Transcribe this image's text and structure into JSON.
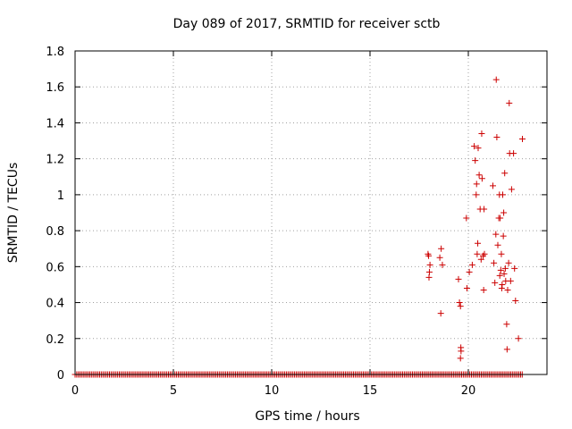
{
  "chart_data": {
    "type": "scatter",
    "title": "Day 089 of 2017, SRMTID for receiver sctb",
    "xlabel": "GPS time / hours",
    "ylabel": "SRMTID / TECUs",
    "xlim": [
      0,
      24
    ],
    "ylim": [
      0,
      1.8
    ],
    "x_ticks": [
      0,
      5,
      10,
      15,
      20
    ],
    "x_tick_labels": [
      "0",
      "5",
      "10",
      "15",
      "20"
    ],
    "y_ticks": [
      0,
      0.2,
      0.4,
      0.6,
      0.8,
      1.0,
      1.2,
      1.4,
      1.6,
      1.8
    ],
    "y_tick_labels": [
      "0",
      "0.2",
      "0.4",
      "0.6",
      "0.8",
      "1",
      "1.2",
      "1.4",
      "1.6",
      "1.8"
    ],
    "grid": true,
    "marker": "+",
    "colors": {
      "marker": "#cc0000",
      "grid": "#a0a0a0",
      "axis": "#000000"
    },
    "zero_baseline": {
      "x_start": 0.0,
      "x_end": 22.8,
      "step": 0.0833,
      "y": 0
    },
    "series": [
      {
        "name": "SRMTID",
        "points": [
          [
            17.95,
            0.67
          ],
          [
            17.98,
            0.66
          ],
          [
            18.0,
            0.54
          ],
          [
            18.02,
            0.57
          ],
          [
            18.05,
            0.61
          ],
          [
            18.55,
            0.65
          ],
          [
            18.6,
            0.34
          ],
          [
            18.62,
            0.7
          ],
          [
            18.68,
            0.61
          ],
          [
            19.5,
            0.53
          ],
          [
            19.55,
            0.4
          ],
          [
            19.6,
            0.38
          ],
          [
            19.62,
            0.15
          ],
          [
            19.63,
            0.13
          ],
          [
            19.6,
            0.09
          ],
          [
            19.9,
            0.87
          ],
          [
            19.93,
            0.48
          ],
          [
            20.05,
            0.57
          ],
          [
            20.2,
            0.61
          ],
          [
            20.3,
            1.27
          ],
          [
            20.35,
            1.19
          ],
          [
            20.4,
            1.0
          ],
          [
            20.42,
            1.06
          ],
          [
            20.45,
            0.67
          ],
          [
            20.48,
            0.73
          ],
          [
            20.5,
            1.26
          ],
          [
            20.55,
            1.11
          ],
          [
            20.6,
            0.92
          ],
          [
            20.65,
            0.64
          ],
          [
            20.68,
            1.34
          ],
          [
            20.7,
            1.09
          ],
          [
            20.75,
            0.66
          ],
          [
            20.78,
            0.47
          ],
          [
            20.8,
            0.92
          ],
          [
            20.82,
            0.67
          ],
          [
            21.25,
            1.05
          ],
          [
            21.3,
            0.62
          ],
          [
            21.35,
            0.51
          ],
          [
            21.4,
            0.78
          ],
          [
            21.42,
            1.64
          ],
          [
            21.45,
            1.32
          ],
          [
            21.5,
            0.72
          ],
          [
            21.55,
            0.87
          ],
          [
            21.58,
            1.0
          ],
          [
            21.6,
            0.55
          ],
          [
            21.62,
            0.87
          ],
          [
            21.65,
            0.58
          ],
          [
            21.68,
            0.67
          ],
          [
            21.7,
            0.48
          ],
          [
            21.72,
            0.5
          ],
          [
            21.75,
            1.0
          ],
          [
            21.78,
            0.77
          ],
          [
            21.8,
            0.9
          ],
          [
            21.82,
            0.56
          ],
          [
            21.85,
            1.12
          ],
          [
            21.88,
            0.59
          ],
          [
            21.9,
            0.52
          ],
          [
            21.95,
            0.28
          ],
          [
            21.97,
            0.14
          ],
          [
            22.0,
            0.47
          ],
          [
            22.05,
            0.62
          ],
          [
            22.08,
            1.51
          ],
          [
            22.1,
            1.23
          ],
          [
            22.15,
            0.52
          ],
          [
            22.2,
            1.03
          ],
          [
            22.3,
            1.23
          ],
          [
            22.35,
            0.59
          ],
          [
            22.4,
            0.41
          ],
          [
            22.55,
            0.2
          ],
          [
            22.75,
            1.31
          ]
        ]
      }
    ]
  }
}
